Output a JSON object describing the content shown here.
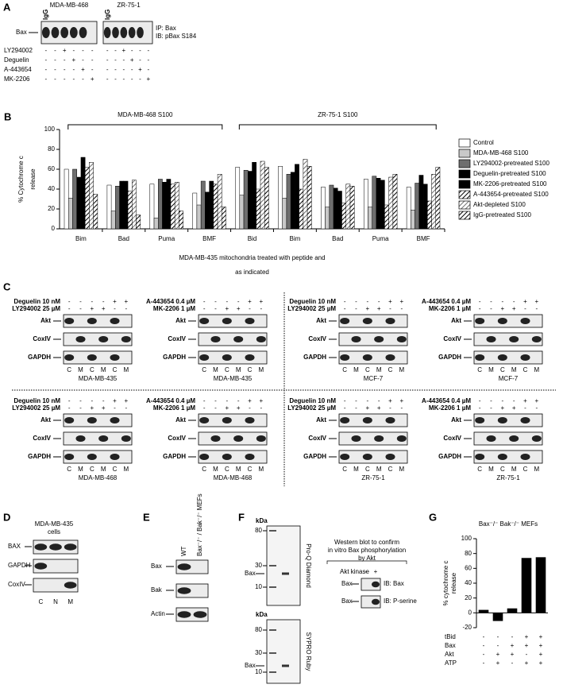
{
  "panel_a": {
    "label": "A",
    "cell_lines": [
      "MDA-MB-468",
      "ZR-75-1"
    ],
    "lane_header": "IgG",
    "protein": "Bax",
    "ip_ib": [
      "IP: Bax",
      "IB: pBax S184"
    ],
    "rows": [
      {
        "name": "LY294002",
        "signs": [
          "-",
          "-",
          "+",
          "-",
          "-",
          "-",
          "-",
          "-",
          "+",
          "-",
          "-",
          "-"
        ]
      },
      {
        "name": "Deguelin",
        "signs": [
          "-",
          "-",
          "-",
          "+",
          "-",
          "-",
          "-",
          "-",
          "-",
          "+",
          "-",
          "-"
        ]
      },
      {
        "name": "A-443654",
        "signs": [
          "-",
          "-",
          "-",
          "-",
          "+",
          "-",
          "-",
          "-",
          "-",
          "-",
          "+",
          "-"
        ]
      },
      {
        "name": "MK-2206",
        "signs": [
          "-",
          "-",
          "-",
          "-",
          "-",
          "+",
          "-",
          "-",
          "-",
          "-",
          "-",
          "+"
        ]
      }
    ]
  },
  "chart_data": [
    {
      "type": "bar",
      "panel_label": "B",
      "category_groups": [
        {
          "name": "MDA-MB-468 S100",
          "categories": [
            "Bim",
            "Bad",
            "Puma",
            "BMF"
          ]
        },
        {
          "name": "ZR-75-1 S100",
          "categories": [
            "Bid",
            "Bim",
            "Bad",
            "Puma",
            "BMF"
          ]
        }
      ],
      "y_label": [
        "% Cytochrome c",
        "release"
      ],
      "x_label": [
        "MDA-MB-435 mitochondria treated with peptide and",
        "as indicated"
      ],
      "ylim": [
        0,
        100
      ],
      "yticks": [
        0,
        20,
        40,
        60,
        80,
        100
      ],
      "grid": false,
      "series": [
        {
          "name": "Control",
          "color": "#ffffff",
          "hatch": false,
          "values": [
            60,
            44,
            45,
            36,
            62,
            63,
            42,
            50,
            42
          ]
        },
        {
          "name": "MDA-MB-468 S100",
          "color": "#c8c8c8",
          "hatch": false,
          "values": [
            31,
            18,
            11,
            24,
            34,
            31,
            22,
            22,
            19
          ]
        },
        {
          "name": "LY294002-pretreated S100",
          "color": "#6e6e6e",
          "hatch": false,
          "values": [
            60,
            43,
            50,
            48,
            59,
            55,
            44,
            53,
            46
          ]
        },
        {
          "name": "Deguelin-pretreated S100",
          "color": "#000000",
          "hatch": false,
          "values": [
            52,
            48,
            47,
            37,
            58,
            57,
            41,
            51,
            54
          ]
        },
        {
          "name": "MK-2206-pretreated S100",
          "color": "#000000",
          "hatch": false,
          "values": [
            72,
            48,
            50,
            48,
            67,
            65,
            38,
            49,
            45
          ]
        },
        {
          "name": "A-443654-pretreated S100",
          "color": "#000000",
          "hatch": true,
          "values": [
            62,
            38,
            45,
            45,
            40,
            40,
            26,
            24,
            28
          ]
        },
        {
          "name": "Akt-depleted S100",
          "color": "#6e6e6e",
          "hatch": true,
          "values": [
            67,
            49,
            47,
            55,
            68,
            70,
            45,
            52,
            55
          ]
        },
        {
          "name": "IgG-pretreated S100",
          "color": "#000000",
          "hatch": true,
          "values": [
            35,
            14,
            18,
            22,
            62,
            63,
            43,
            55,
            62
          ]
        }
      ]
    },
    {
      "type": "bar",
      "panel_label": "G",
      "title": "Bax⁻/⁻ Bak⁻/⁻ MEFs",
      "y_label": [
        "% cytochrome c",
        "release"
      ],
      "values": [
        4,
        -11,
        6,
        74,
        75
      ],
      "color": "#000000",
      "ylim": [
        -20,
        100
      ],
      "yticks": [
        -20,
        0,
        20,
        40,
        60,
        80,
        100
      ],
      "grid": false,
      "conditions": [
        {
          "name": "tBid",
          "signs": [
            "-",
            "-",
            "-",
            "+",
            "+"
          ]
        },
        {
          "name": "Bax",
          "signs": [
            "-",
            "-",
            "+",
            "+",
            "+"
          ]
        },
        {
          "name": "Akt",
          "signs": [
            "-",
            "+",
            "+",
            "-",
            "+"
          ]
        },
        {
          "name": "ATP",
          "signs": [
            "-",
            "+",
            "-",
            "+",
            "+"
          ]
        }
      ]
    }
  ],
  "panel_c": {
    "label": "C",
    "blots": [
      {
        "treatments": [
          {
            "name": "Deguelin 10 nM",
            "signs": [
              "-",
              "-",
              "-",
              "-",
              "+",
              "+"
            ]
          },
          {
            "name": "LY294002 25 µM",
            "signs": [
              "-",
              "-",
              "+",
              "+",
              "-",
              "-"
            ]
          }
        ],
        "proteins": [
          "Akt",
          "CoxIV",
          "GAPDH"
        ],
        "lanes": [
          "C",
          "M",
          "C",
          "M",
          "C",
          "M"
        ],
        "cell_line": "MDA-MB-435"
      },
      {
        "treatments": [
          {
            "name": "A-443654 0.4 µM",
            "signs": [
              "-",
              "-",
              "-",
              "-",
              "+",
              "+"
            ]
          },
          {
            "name": "MK-2206 1 µM",
            "signs": [
              "-",
              "-",
              "+",
              "+",
              "-",
              "-"
            ]
          }
        ],
        "proteins": [
          "Akt",
          "CoxIV",
          "GAPDH"
        ],
        "lanes": [
          "C",
          "M",
          "C",
          "M",
          "C",
          "M"
        ],
        "cell_line": "MDA-MB-435"
      },
      {
        "treatments": [
          {
            "name": "Deguelin 10 nM",
            "signs": [
              "-",
              "-",
              "-",
              "-",
              "+",
              "+"
            ]
          },
          {
            "name": "LY294002 25 µM",
            "signs": [
              "-",
              "-",
              "+",
              "+",
              "-",
              "-"
            ]
          }
        ],
        "proteins": [
          "Akt",
          "CoxIV",
          "GAPDH"
        ],
        "lanes": [
          "C",
          "M",
          "C",
          "M",
          "C",
          "M"
        ],
        "cell_line": "MCF-7"
      },
      {
        "treatments": [
          {
            "name": "A-443654 0.4 µM",
            "signs": [
              "-",
              "-",
              "-",
              "-",
              "+",
              "+"
            ]
          },
          {
            "name": "MK-2206 1 µM",
            "signs": [
              "-",
              "-",
              "+",
              "+",
              "-",
              "-"
            ]
          }
        ],
        "proteins": [
          "Akt",
          "CoxIV",
          "GAPDH"
        ],
        "lanes": [
          "C",
          "M",
          "C",
          "M",
          "C",
          "M"
        ],
        "cell_line": "MCF-7"
      },
      {
        "treatments": [
          {
            "name": "Deguelin 10 nM",
            "signs": [
              "-",
              "-",
              "-",
              "-",
              "+",
              "+"
            ]
          },
          {
            "name": "LY294002 25 µM",
            "signs": [
              "-",
              "-",
              "+",
              "+",
              "-",
              "-"
            ]
          }
        ],
        "proteins": [
          "Akt",
          "CoxIV",
          "GAPDH"
        ],
        "lanes": [
          "C",
          "M",
          "C",
          "M",
          "C",
          "M"
        ],
        "cell_line": "MDA-MB-468"
      },
      {
        "treatments": [
          {
            "name": "A-443654 0.4 µM",
            "signs": [
              "-",
              "-",
              "-",
              "-",
              "+",
              "+"
            ]
          },
          {
            "name": "MK-2206 1 µM",
            "signs": [
              "-",
              "-",
              "+",
              "+",
              "-",
              "-"
            ]
          }
        ],
        "proteins": [
          "Akt",
          "CoxIV",
          "GAPDH"
        ],
        "lanes": [
          "C",
          "M",
          "C",
          "M",
          "C",
          "M"
        ],
        "cell_line": "MDA-MB-468"
      },
      {
        "treatments": [
          {
            "name": "Deguelin 10 nM",
            "signs": [
              "-",
              "-",
              "-",
              "-",
              "+",
              "+"
            ]
          },
          {
            "name": "LY294002 25 µM",
            "signs": [
              "-",
              "-",
              "+",
              "+",
              "-",
              "-"
            ]
          }
        ],
        "proteins": [
          "Akt",
          "CoxIV",
          "GAPDH"
        ],
        "lanes": [
          "C",
          "M",
          "C",
          "M",
          "C",
          "M"
        ],
        "cell_line": "ZR-75-1"
      },
      {
        "treatments": [
          {
            "name": "A-443654 0.4 µM",
            "signs": [
              "-",
              "-",
              "-",
              "-",
              "+",
              "+"
            ]
          },
          {
            "name": "MK-2206 1 µM",
            "signs": [
              "-",
              "-",
              "+",
              "+",
              "-",
              "-"
            ]
          }
        ],
        "proteins": [
          "Akt",
          "CoxIV",
          "GAPDH"
        ],
        "lanes": [
          "C",
          "M",
          "C",
          "M",
          "C",
          "M"
        ],
        "cell_line": "ZR-75-1"
      }
    ]
  },
  "panel_d": {
    "label": "D",
    "title": [
      "MDA-MB-435",
      "cells"
    ],
    "proteins": [
      "BAX",
      "GAPDH",
      "CoxIV"
    ],
    "lanes": [
      "C",
      "N",
      "M"
    ]
  },
  "panel_e": {
    "label": "E",
    "lanes": [
      "WT",
      "Bax⁻/⁻ / Bak⁻/⁻ MEFs"
    ],
    "proteins": [
      "Bax",
      "Bak",
      "Actin"
    ]
  },
  "panel_f": {
    "label": "F",
    "gels": [
      {
        "unit": "kDa",
        "markers": [
          "80",
          "30",
          "10"
        ],
        "band": "Bax",
        "stain": "Pro-Q Diamond"
      },
      {
        "unit": "kDa",
        "markers": [
          "80",
          "30",
          "10"
        ],
        "band": "Bax",
        "stain": "SYPRO Ruby"
      }
    ],
    "inset": {
      "title": [
        "Western blot to confirm",
        "in vitro Bax phosphorylation",
        "by Akt"
      ],
      "condition": "Akt kinase",
      "signs": [
        "-",
        "+"
      ],
      "blots": [
        {
          "protein": "Bax",
          "antibody": "IB: Bax"
        },
        {
          "protein": "Bax",
          "antibody": "IB: P-serine"
        }
      ]
    }
  }
}
